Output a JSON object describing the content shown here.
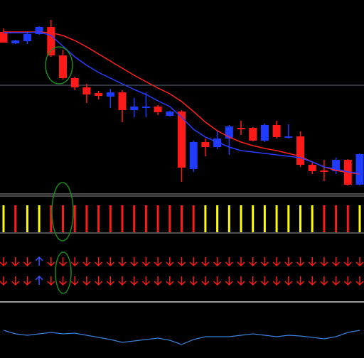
{
  "chart_data": [
    {
      "type": "candlestick",
      "up_color": "#1f3bff",
      "down_color": "#ff1a1a",
      "ylim": [
        0,
        272
      ],
      "level": 152,
      "level_color": "#5a6e82",
      "open": [
        227,
        211,
        214,
        224,
        234,
        194,
        162,
        149,
        141,
        136,
        142,
        117,
        120,
        122,
        109,
        115,
        34,
        72,
        65,
        77,
        92,
        92,
        74,
        96,
        78,
        80,
        40,
        32,
        31,
        47,
        12
      ],
      "high": [
        232,
        216,
        227,
        235,
        244,
        202,
        164,
        154,
        144,
        147,
        145,
        134,
        142,
        124,
        116,
        117,
        74,
        77,
        87,
        96,
        102,
        93,
        98,
        102,
        97,
        87,
        44,
        47,
        50,
        48,
        56
      ],
      "low": [
        212,
        210,
        210,
        223,
        192,
        160,
        145,
        127,
        132,
        120,
        100,
        107,
        107,
        110,
        108,
        16,
        30,
        52,
        62,
        54,
        82,
        73,
        72,
        77,
        77,
        37,
        27,
        17,
        27,
        11,
        11
      ],
      "close": [
        212,
        215,
        224,
        234,
        194,
        162,
        149,
        139,
        137,
        142,
        117,
        122,
        122,
        114,
        115,
        36,
        72,
        65,
        77,
        94,
        90,
        74,
        96,
        79,
        80,
        40,
        31,
        30,
        47,
        12,
        55
      ],
      "series": [
        {
          "color": "#ff2020",
          "values": [
            227,
            227,
            227,
            227,
            226,
            222,
            215,
            206,
            196,
            186,
            176,
            166,
            157,
            148,
            140,
            129,
            115,
            100,
            88,
            79,
            72,
            67,
            63,
            60,
            56,
            52,
            44,
            37,
            32,
            29,
            27
          ]
        },
        {
          "color": "#2a3cff",
          "values": [
            226,
            226,
            226,
            227,
            222,
            207,
            192,
            180,
            170,
            162,
            154,
            146,
            139,
            130,
            122,
            107,
            90,
            79,
            72,
            65,
            60,
            58,
            56,
            54,
            52,
            50,
            44,
            37,
            34,
            30,
            28
          ]
        }
      ]
    },
    {
      "type": "signal-bar",
      "up_color": "#ffff00",
      "down_color": "#ff1a1a",
      "values": [
        1,
        -1,
        1,
        1,
        -1,
        -1,
        -1,
        -1,
        -1,
        -1,
        -1,
        -1,
        -1,
        -1,
        -1,
        -1,
        -1,
        1,
        1,
        1,
        1,
        1,
        1,
        1,
        1,
        1,
        1,
        -1,
        -1,
        -1,
        1
      ]
    },
    {
      "type": "signal-arrow",
      "up_color": "#3a50ff",
      "down_color": "#ff1a1a",
      "rows": [
        [
          -1,
          -1,
          -1,
          1,
          -1,
          -1,
          -1,
          -1,
          -1,
          -1,
          -1,
          -1,
          -1,
          -1,
          -1,
          -1,
          -1,
          -1,
          -1,
          -1,
          -1,
          -1,
          -1,
          -1,
          -1,
          -1,
          -1,
          -1,
          -1,
          -1,
          -1
        ],
        [
          -1,
          -1,
          -1,
          1,
          -1,
          -1,
          -1,
          -1,
          -1,
          -1,
          -1,
          -1,
          -1,
          -1,
          -1,
          -1,
          -1,
          -1,
          -1,
          -1,
          -1,
          -1,
          -1,
          -1,
          -1,
          -1,
          -1,
          -1,
          -1,
          -1,
          -1
        ]
      ]
    },
    {
      "type": "line",
      "color": "#3a7fd8",
      "ylim": [
        0,
        76
      ],
      "values": [
        39,
        34,
        32,
        34,
        36,
        34,
        35,
        32,
        29,
        26,
        22,
        24,
        26,
        28,
        25,
        19,
        26,
        30,
        30,
        30,
        32,
        34,
        32,
        30,
        32,
        31,
        29,
        27,
        30,
        36,
        39
      ]
    }
  ]
}
